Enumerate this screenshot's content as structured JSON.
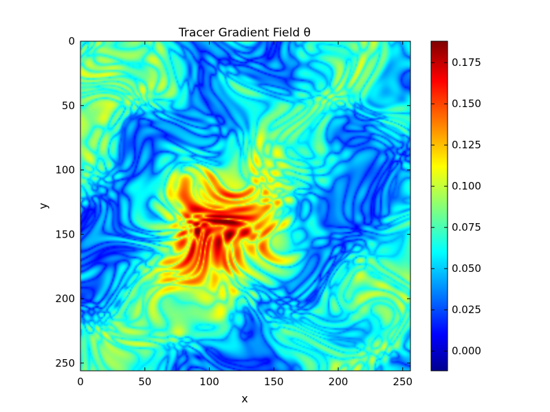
{
  "chart_data": {
    "type": "heatmap",
    "title": "Tracer Gradient Field  θ",
    "xlabel": "x",
    "ylabel": "y",
    "xlim": [
      0,
      256
    ],
    "ylim": [
      256,
      0
    ],
    "x_ticks": [
      0,
      50,
      100,
      150,
      200,
      250
    ],
    "y_ticks": [
      0,
      50,
      100,
      150,
      200,
      250
    ],
    "colorbar": {
      "min": -0.012,
      "max": 0.188,
      "ticks": [
        "0.000",
        "0.025",
        "0.050",
        "0.075",
        "0.100",
        "0.125",
        "0.150",
        "0.175"
      ],
      "colormap": "jet"
    },
    "field_features": {
      "high_region_center": [
        105,
        150
      ],
      "high_value": 0.17,
      "background_level": 0.06,
      "low_value": 0.01
    }
  }
}
